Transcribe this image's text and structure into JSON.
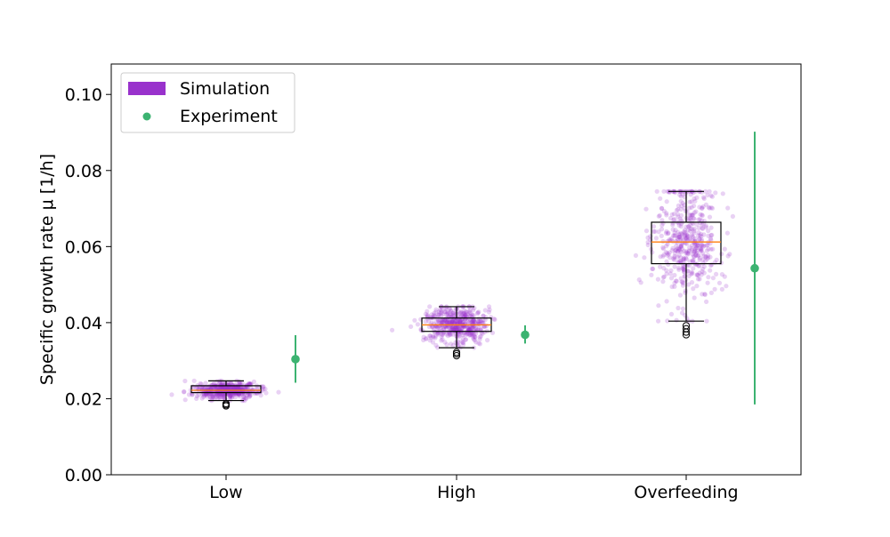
{
  "chart_data": {
    "type": "box",
    "title": "",
    "xlabel": "",
    "ylabel": "Specific growth rate μ [1/h]",
    "ylim": [
      0.0,
      0.108
    ],
    "yticks": [
      0.0,
      0.02,
      0.04,
      0.06,
      0.08,
      0.1
    ],
    "ytick_labels": [
      "0.00",
      "0.02",
      "0.04",
      "0.06",
      "0.08",
      "0.10"
    ],
    "categories": [
      "Low",
      "High",
      "Overfeeding"
    ],
    "legend": {
      "placement": "top-left",
      "entries": [
        {
          "label": "Simulation",
          "color": "#9932CC",
          "kind": "patch"
        },
        {
          "label": "Experiment",
          "color": "#3CB371",
          "kind": "marker"
        }
      ]
    },
    "series": [
      {
        "name": "Simulation",
        "kind": "box",
        "color": "#9932CC",
        "median_color": "#FF7F0E",
        "boxes": [
          {
            "category": "Low",
            "q1": 0.0216,
            "median": 0.0222,
            "q3": 0.0234,
            "whisker_low": 0.0195,
            "whisker_high": 0.0247,
            "outliers": [
              0.0187,
              0.0184,
              0.0181
            ],
            "spread": 0.0011
          },
          {
            "category": "High",
            "q1": 0.0377,
            "median": 0.0394,
            "q3": 0.0412,
            "whisker_low": 0.0334,
            "whisker_high": 0.0442,
            "outliers": [
              0.0322,
              0.0318,
              0.0313
            ],
            "spread": 0.0024
          },
          {
            "category": "Overfeeding",
            "q1": 0.0555,
            "median": 0.0612,
            "q3": 0.0664,
            "whisker_low": 0.0404,
            "whisker_high": 0.0745,
            "outliers": [
              0.0392,
              0.0384,
              0.0375,
              0.0368
            ],
            "spread": 0.0078
          }
        ]
      },
      {
        "name": "Experiment",
        "kind": "errorbar",
        "color": "#3CB371",
        "points": [
          {
            "category": "Low",
            "value": 0.0304,
            "low": 0.0242,
            "high": 0.0367
          },
          {
            "category": "High",
            "value": 0.0368,
            "low": 0.0345,
            "high": 0.0393
          },
          {
            "category": "Overfeeding",
            "value": 0.0543,
            "low": 0.0185,
            "high": 0.0902
          }
        ]
      }
    ],
    "grid": false
  }
}
